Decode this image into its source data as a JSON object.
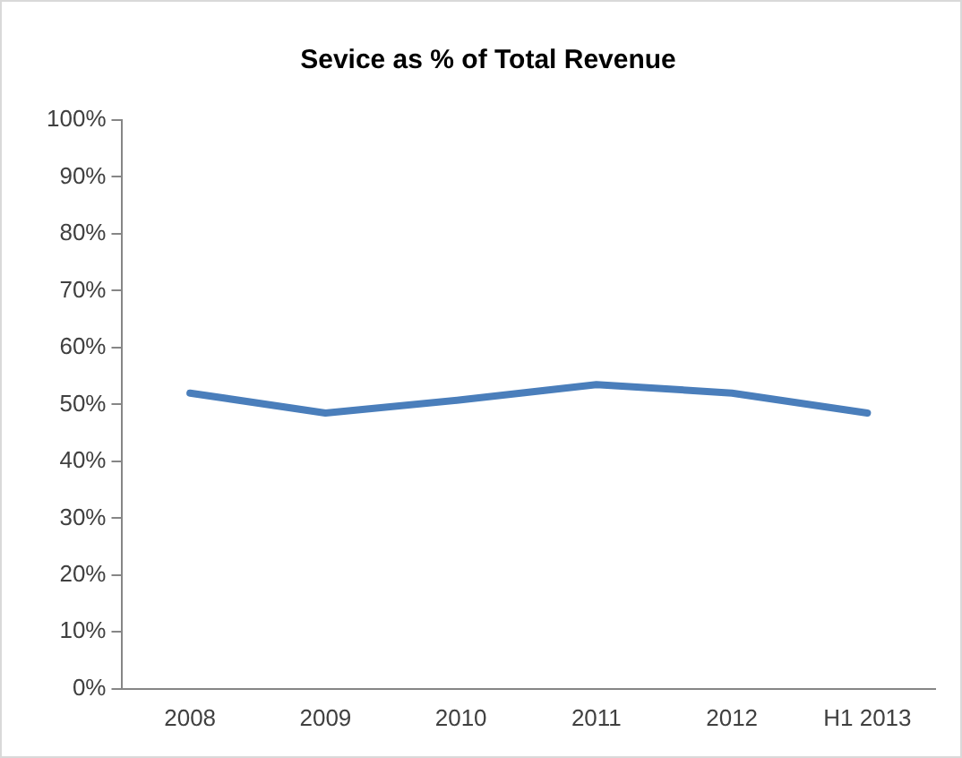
{
  "chart_data": {
    "type": "line",
    "title": "Sevice as % of Total Revenue",
    "categories": [
      "2008",
      "2009",
      "2010",
      "2011",
      "2012",
      "H1 2013"
    ],
    "series": [
      {
        "color": "#4a7ebb",
        "values": [
          52,
          48.5,
          50.8,
          53.5,
          52,
          48.5
        ]
      }
    ],
    "ylim": [
      0,
      100
    ],
    "yticks": [
      {
        "value": 0,
        "label": "0%"
      },
      {
        "value": 10,
        "label": "10%"
      },
      {
        "value": 20,
        "label": "20%"
      },
      {
        "value": 30,
        "label": "30%"
      },
      {
        "value": 40,
        "label": "40%"
      },
      {
        "value": 50,
        "label": "50%"
      },
      {
        "value": 60,
        "label": "60%"
      },
      {
        "value": 70,
        "label": "70%"
      },
      {
        "value": 80,
        "label": "80%"
      },
      {
        "value": 90,
        "label": "90%"
      },
      {
        "value": 100,
        "label": "100%"
      }
    ],
    "grid": false,
    "legend": false,
    "marker": "none",
    "line_style": "solid"
  }
}
